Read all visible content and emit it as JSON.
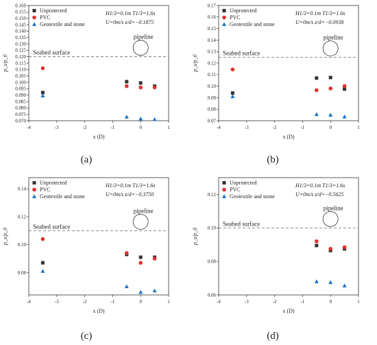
{
  "chart_data": [
    {
      "type": "scatter",
      "caption": "(a)",
      "xlabel": "x (D)",
      "ylabel": "p_s/p_0",
      "xlim": [
        -4,
        1
      ],
      "xticks": [
        -4,
        -3,
        -2,
        -1,
        0,
        1
      ],
      "ylim": [
        0.07,
        0.16
      ],
      "yticks": [
        0.07,
        0.075,
        0.08,
        0.085,
        0.09,
        0.095,
        0.1,
        0.105,
        0.11,
        0.115,
        0.12,
        0.125,
        0.13,
        0.135,
        0.14,
        0.145,
        0.15,
        0.155,
        0.16
      ],
      "ytick_decimals": 3,
      "seabed_y": 0.12,
      "seabed_label": "Seabed surface",
      "pipeline_label": "pipeline",
      "params": [
        "H1/3=0.1m T1/3=1.6s",
        "U=0m/s z/d=−0.1875"
      ],
      "legend_position": "top-left",
      "series": [
        {
          "name": "Unprotected",
          "marker": "square",
          "color": "#333333",
          "x": [
            -3.5,
            -0.5,
            0,
            0.5
          ],
          "y": [
            0.092,
            0.1005,
            0.0995,
            0.097
          ]
        },
        {
          "name": "PVC",
          "marker": "circle",
          "color": "#e0302c",
          "x": [
            -3.5,
            -0.5,
            0,
            0.5
          ],
          "y": [
            0.111,
            0.097,
            0.096,
            0.096
          ]
        },
        {
          "name": "Geotextile and stone",
          "marker": "triangle",
          "color": "#1a73c8",
          "x": [
            -3.5,
            -0.5,
            0,
            0.5
          ],
          "y": [
            0.0895,
            0.073,
            0.0715,
            0.071
          ]
        }
      ]
    },
    {
      "type": "scatter",
      "caption": "(b)",
      "xlabel": "x (D)",
      "ylabel": "p_s/p_0",
      "xlim": [
        -4,
        1
      ],
      "xticks": [
        -4,
        -3,
        -2,
        -1,
        0,
        1
      ],
      "ylim": [
        0.07,
        0.17
      ],
      "yticks": [
        0.07,
        0.08,
        0.09,
        0.1,
        0.11,
        0.12,
        0.13,
        0.14,
        0.15,
        0.16,
        0.17
      ],
      "ytick_decimals": 2,
      "seabed_y": 0.125,
      "seabed_label": "Seabed surface",
      "pipeline_label": "pipeline",
      "params": [
        "H1/3=0.1m T1/3=1.6s",
        "U=0m/s z/d=−0.0938"
      ],
      "legend_position": "top-left",
      "series": [
        {
          "name": "Unprotected",
          "marker": "square",
          "color": "#333333",
          "x": [
            -3.5,
            -0.5,
            0,
            0.5
          ],
          "y": [
            0.094,
            0.107,
            0.1075,
            0.0975
          ]
        },
        {
          "name": "PVC",
          "marker": "circle",
          "color": "#e0302c",
          "x": [
            -3.5,
            -0.5,
            0,
            0.5
          ],
          "y": [
            0.1145,
            0.0965,
            0.098,
            0.1
          ]
        },
        {
          "name": "Geotextile and stone",
          "marker": "triangle",
          "color": "#1a73c8",
          "x": [
            -3.5,
            -0.5,
            0,
            0.5
          ],
          "y": [
            0.091,
            0.0755,
            0.075,
            0.0735
          ]
        }
      ]
    },
    {
      "type": "scatter",
      "caption": "(c)",
      "xlabel": "x (D)",
      "ylabel": "p_s/p_0",
      "xlim": [
        -4,
        1
      ],
      "xticks": [
        -4,
        -3,
        -2,
        -1,
        0,
        1
      ],
      "ylim": [
        0.064,
        0.148
      ],
      "yticks": [
        0.08,
        0.1,
        0.12,
        0.14
      ],
      "ytick_decimals": 2,
      "seabed_y": 0.11,
      "seabed_label": "Seabed surface",
      "pipeline_label": "pipeline",
      "params": [
        "H1/3=0.1m T1/3=1.6s",
        "U=0m/s z/d=−0.3750"
      ],
      "legend_position": "top-left",
      "series": [
        {
          "name": "Unprotected",
          "marker": "square",
          "color": "#333333",
          "x": [
            -3.5,
            -0.5,
            0,
            0.5
          ],
          "y": [
            0.087,
            0.093,
            0.091,
            0.091
          ]
        },
        {
          "name": "PVC",
          "marker": "circle",
          "color": "#e0302c",
          "x": [
            -3.5,
            -0.5,
            0,
            0.5
          ],
          "y": [
            0.104,
            0.094,
            0.087,
            0.09
          ]
        },
        {
          "name": "Geotextile and stone",
          "marker": "triangle",
          "color": "#1a73c8",
          "x": [
            -3.5,
            -0.5,
            0,
            0.5
          ],
          "y": [
            0.081,
            0.07,
            0.066,
            0.067
          ]
        }
      ]
    },
    {
      "type": "scatter",
      "caption": "(d)",
      "xlabel": "x (D)",
      "ylabel": "p_s/p_0",
      "xlim": [
        -4,
        1
      ],
      "xticks": [
        -4,
        -3,
        -2,
        -1,
        0,
        1
      ],
      "ylim": [
        0.06,
        0.13
      ],
      "yticks": [
        0.06,
        0.08,
        0.1,
        0.12
      ],
      "ytick_decimals": 2,
      "seabed_y": 0.1,
      "seabed_label": "Seabed surface",
      "pipeline_label": "pipeline",
      "params": [
        "H1/3=0.1m T1/3=1.6s",
        "U=0m/s z/d=−0.5625"
      ],
      "legend_position": "top-left",
      "series": [
        {
          "name": "Unprotected",
          "marker": "square",
          "color": "#333333",
          "x": [
            -0.5,
            0,
            0.5
          ],
          "y": [
            0.0895,
            0.0865,
            0.0875
          ]
        },
        {
          "name": "PVC",
          "marker": "circle",
          "color": "#e0302c",
          "x": [
            -0.5,
            0,
            0.5
          ],
          "y": [
            0.092,
            0.0875,
            0.0885
          ]
        },
        {
          "name": "Geotextile and stone",
          "marker": "triangle",
          "color": "#1a73c8",
          "x": [
            -0.5,
            0,
            0.5
          ],
          "y": [
            0.068,
            0.0675,
            0.0655
          ]
        }
      ]
    }
  ]
}
